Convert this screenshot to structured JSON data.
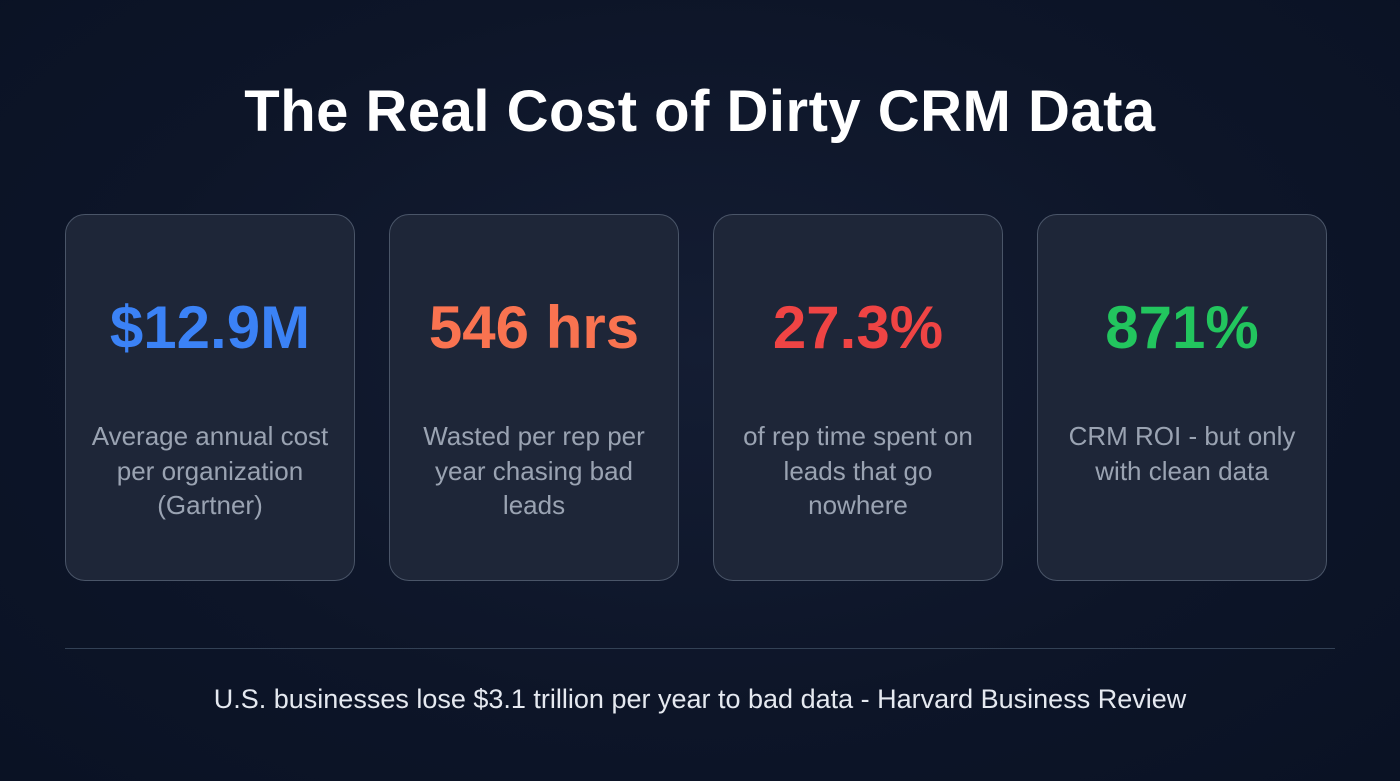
{
  "title": "The Real Cost of Dirty CRM Data",
  "cards": [
    {
      "value": "$12.9M",
      "color": "#3b82f6",
      "description": "Average annual cost per organization (Gartner)"
    },
    {
      "value": "546 hrs",
      "color": "#f97350",
      "description": "Wasted per rep per year chasing bad leads"
    },
    {
      "value": "27.3%",
      "color": "#ef4444",
      "description": "of rep time spent on leads that go nowhere"
    },
    {
      "value": "871%",
      "color": "#22c55e",
      "description": "CRM ROI - but only with clean data"
    }
  ],
  "footer": "U.S. businesses lose $3.1 trillion per year to bad data - Harvard Business Review"
}
